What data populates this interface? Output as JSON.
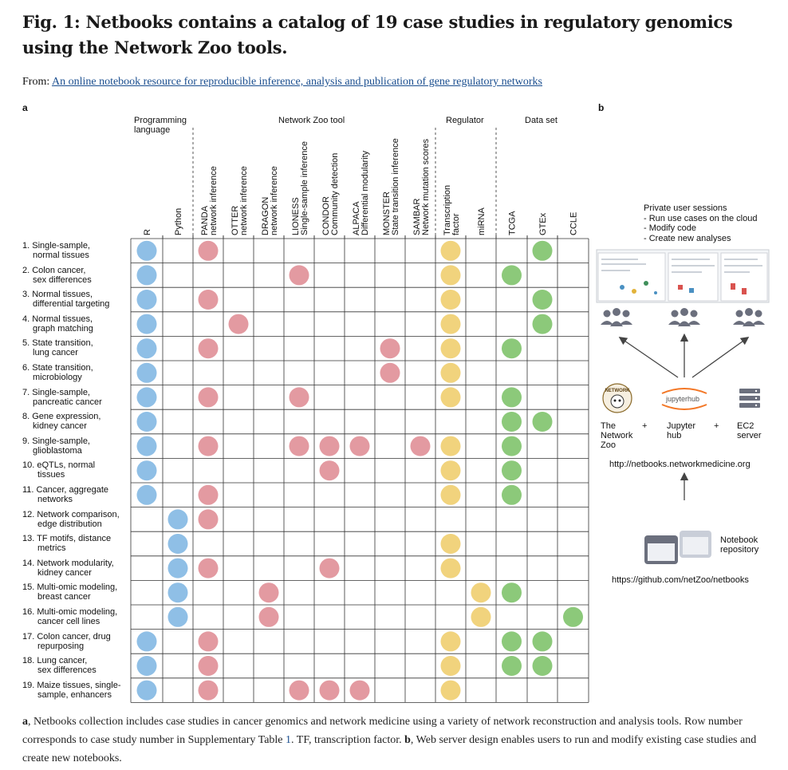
{
  "title": "Fig. 1: Netbooks contains a catalog of 19 case studies in regulatory genomics using the Network Zoo tools.",
  "from_label": "From:",
  "from_link": "An online notebook resource for reproducible inference, analysis and publication of gene regulatory networks",
  "panel_a": "a",
  "panel_b": "b",
  "groups": {
    "programming": "Programming language",
    "netzoo": "Network Zoo tool",
    "regulator": "Regulator",
    "dataset": "Data set"
  },
  "columns": [
    [
      "R"
    ],
    [
      "Python"
    ],
    [
      "PANDA",
      "network inference"
    ],
    [
      "OTTER",
      "network inference"
    ],
    [
      "DRAGON",
      "network inference"
    ],
    [
      "LIONESS",
      "Single-sample inference"
    ],
    [
      "CONDOR",
      "Community detection"
    ],
    [
      "ALPACA",
      "Differential modularity"
    ],
    [
      "MONSTER",
      "State transition inference"
    ],
    [
      "SAMBAR",
      "Network mutation scores"
    ],
    [
      "Transcription",
      "factor"
    ],
    [
      "miRNA"
    ],
    [
      "TCGA"
    ],
    [
      "GTEx"
    ],
    [
      "CCLE"
    ]
  ],
  "rows": [
    {
      "l1": "1. Single-sample,",
      "l2": "normal tissues",
      "cells": [
        0,
        2,
        10,
        13
      ]
    },
    {
      "l1": "2. Colon cancer,",
      "l2": "sex differences",
      "cells": [
        0,
        5,
        10,
        12
      ]
    },
    {
      "l1": "3. Normal tissues,",
      "l2": "differential targeting",
      "cells": [
        0,
        2,
        10,
        13
      ]
    },
    {
      "l1": "4. Normal tissues,",
      "l2": "graph matching",
      "cells": [
        0,
        3,
        10,
        13
      ]
    },
    {
      "l1": "5. State transition,",
      "l2": "lung cancer",
      "cells": [
        0,
        2,
        8,
        10,
        12
      ]
    },
    {
      "l1": "6. State transition,",
      "l2": "microbiology",
      "cells": [
        0,
        8,
        10
      ]
    },
    {
      "l1": "7. Single-sample,",
      "l2": "pancreatic cancer",
      "cells": [
        0,
        2,
        5,
        10,
        12
      ]
    },
    {
      "l1": "8. Gene expression,",
      "l2": "kidney cancer",
      "cells": [
        0,
        12,
        13
      ]
    },
    {
      "l1": "9. Single-sample,",
      "l2": "glioblastoma",
      "cells": [
        0,
        2,
        5,
        6,
        7,
        9,
        10,
        12
      ]
    },
    {
      "l1": "10. eQTLs, normal",
      "l2": "tissues",
      "cells": [
        0,
        6,
        10,
        12
      ]
    },
    {
      "l1": "11. Cancer, aggregate",
      "l2": "networks",
      "cells": [
        0,
        2,
        10,
        12
      ]
    },
    {
      "l1": "12. Network comparison,",
      "l2": "edge distribution",
      "cells": [
        1,
        2
      ]
    },
    {
      "l1": "13. TF motifs, distance",
      "l2": "metrics",
      "cells": [
        1,
        10
      ]
    },
    {
      "l1": "14. Network modularity,",
      "l2": "kidney cancer",
      "cells": [
        1,
        2,
        6,
        10
      ]
    },
    {
      "l1": "15. Multi-omic modeling,",
      "l2": "breast cancer",
      "cells": [
        1,
        4,
        11,
        12
      ]
    },
    {
      "l1": "16. Multi-omic modeling,",
      "l2": "cancer cell lines",
      "cells": [
        1,
        4,
        11,
        14
      ]
    },
    {
      "l1": "17. Colon cancer, drug",
      "l2": "repurposing",
      "cells": [
        0,
        2,
        10,
        12,
        13
      ]
    },
    {
      "l1": "18. Lung cancer,",
      "l2": "sex differences",
      "cells": [
        0,
        2,
        10,
        12,
        13
      ]
    },
    {
      "l1": "19. Maize tissues, single-",
      "l2": "sample, enhancers",
      "cells": [
        0,
        2,
        5,
        6,
        7,
        10
      ]
    }
  ],
  "colors": {
    "language": "#8fbfe6",
    "tool": "#e39aa1",
    "regulator": "#f1d37d",
    "dataset": "#8cc97a",
    "icon_gray": "#6b6f7d"
  },
  "panel_b_text": {
    "sessions_title": "Private user sessions",
    "sessions_items": [
      "- Run use cases on the cloud",
      "- Modify code",
      "- Create new analyses"
    ],
    "netzoo_label": "The Network Zoo",
    "jupyter_label": "Jupyter hub",
    "jupyter_logo_text": "jupyterhub",
    "ec2_label": "EC2 server",
    "plus": "+",
    "url": "http://netbooks.networkmedicine.org",
    "repo_label": "Notebook repository",
    "github": "https://github.com/netZoo/netbooks"
  },
  "caption": {
    "a_bold": "a",
    "a_text": ", Netbooks collection includes case studies in cancer genomics and network medicine using a variety of network reconstruction and analysis tools. Row number corresponds to case study number in Supplementary Table ",
    "table_link": "1",
    "mid_text": ". TF, transcription factor. ",
    "b_bold": "b",
    "b_text": ", Web server design enables users to run and modify existing case studies and create new notebooks."
  }
}
